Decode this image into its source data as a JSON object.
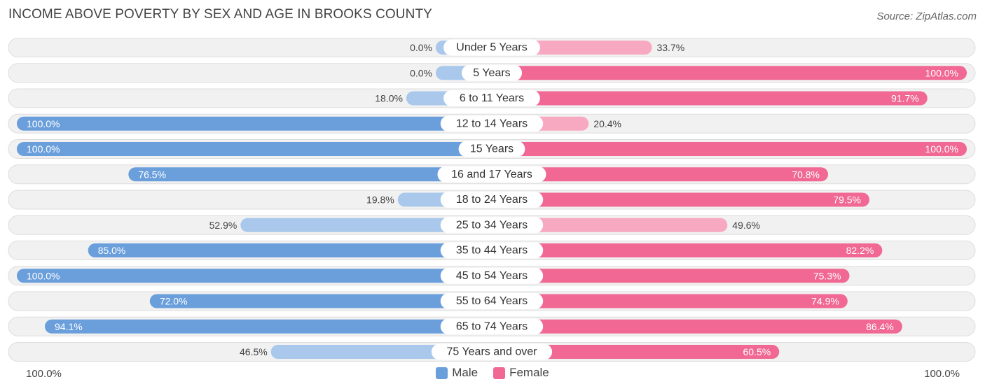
{
  "header": {
    "title": "INCOME ABOVE POVERTY BY SEX AND AGE IN BROOKS COUNTY",
    "source": "Source: ZipAtlas.com"
  },
  "colors": {
    "male_strong": "#6a9fdc",
    "male_light": "#a9c8ec",
    "female_strong": "#f06893",
    "female_light": "#f7a9c1",
    "row_bg": "#f1f1f1",
    "row_border": "#dddddd"
  },
  "axis": {
    "left_label": "100.0%",
    "right_label": "100.0%"
  },
  "legend": {
    "male_label": "Male",
    "female_label": "Female"
  },
  "chart_data": {
    "type": "bar",
    "orientation": "horizontal-diverging",
    "title": "INCOME ABOVE POVERTY BY SEX AND AGE IN BROOKS COUNTY",
    "xlim": [
      0,
      100
    ],
    "categories": [
      "Under 5 Years",
      "5 Years",
      "6 to 11 Years",
      "12 to 14 Years",
      "15 Years",
      "16 and 17 Years",
      "18 to 24 Years",
      "25 to 34 Years",
      "35 to 44 Years",
      "45 to 54 Years",
      "55 to 64 Years",
      "65 to 74 Years",
      "75 Years and over"
    ],
    "series": [
      {
        "name": "Male",
        "values": [
          0.0,
          0.0,
          18.0,
          100.0,
          100.0,
          76.5,
          19.8,
          52.9,
          85.0,
          100.0,
          72.0,
          94.1,
          46.5
        ],
        "labels": [
          "0.0%",
          "0.0%",
          "18.0%",
          "100.0%",
          "100.0%",
          "76.5%",
          "19.8%",
          "52.9%",
          "85.0%",
          "100.0%",
          "72.0%",
          "94.1%",
          "46.5%"
        ]
      },
      {
        "name": "Female",
        "values": [
          33.7,
          100.0,
          91.7,
          20.4,
          100.0,
          70.8,
          79.5,
          49.6,
          82.2,
          75.3,
          74.9,
          86.4,
          60.5
        ],
        "labels": [
          "33.7%",
          "100.0%",
          "91.7%",
          "20.4%",
          "100.0%",
          "70.8%",
          "79.5%",
          "49.6%",
          "82.2%",
          "75.3%",
          "74.9%",
          "86.4%",
          "60.5%"
        ]
      }
    ]
  }
}
